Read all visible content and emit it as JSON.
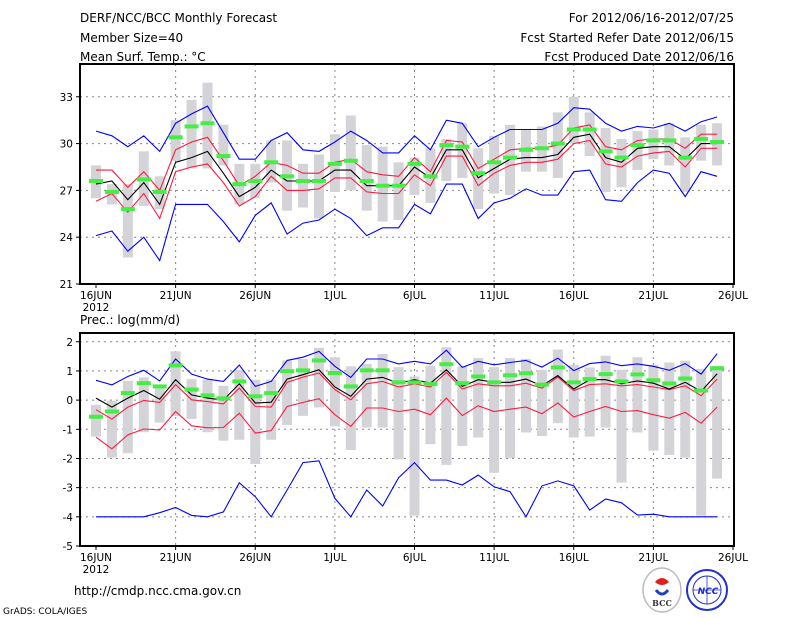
{
  "header": {
    "title": "DERF/NCC/BCC Monthly Forecast",
    "member_size": "Member Size=40",
    "period": "For 2012/06/16-2012/07/25",
    "started": "Fcst Started Refer Date 2012/06/15",
    "produced": "Fcst Produced Date 2012/06/16"
  },
  "footer": {
    "url": "http://cmdp.ncc.cma.gov.cn",
    "credit": "GrADS: COLA/IGES",
    "logo_bcc": "BCC",
    "logo_ncc": "NCC"
  },
  "colors": {
    "max_min": "#0000ff",
    "spread": "#ff1a40",
    "mean": "#000000",
    "median": "#44ee44",
    "range_bar": "#d4d4d8"
  },
  "chart_data": [
    {
      "type": "line",
      "title": "Mean Surf. Temp.: °C",
      "xlabel": "",
      "ylabel": "",
      "x_ticks": [
        "16JUN",
        "21JUN",
        "26JUN",
        "1JUL",
        "6JUL",
        "11JUL",
        "16JUL",
        "21JUL",
        "26JUL"
      ],
      "x_year": "2012",
      "x_start": "2012-06-16",
      "x_step_days": 1,
      "ylim": [
        21,
        35.1
      ],
      "y_ticks": [
        "21",
        "24",
        "27",
        "30",
        "33"
      ],
      "y_tick_values": [
        21,
        24,
        27,
        30,
        33
      ],
      "grid": true,
      "series": [
        {
          "name": "max",
          "color": "#0000ff",
          "values": [
            30.8,
            30.5,
            29.8,
            30.5,
            29.5,
            31.3,
            31.9,
            32.4,
            30.7,
            29.0,
            29.0,
            30.2,
            30.7,
            29.6,
            29.5,
            30.1,
            30.8,
            30.2,
            29.4,
            29.4,
            30.5,
            29.6,
            31.5,
            31.3,
            29.8,
            30.4,
            30.9,
            30.9,
            30.9,
            31.3,
            32.3,
            32.2,
            31.3,
            30.8,
            31.1,
            31.0,
            31.3,
            30.8,
            31.4,
            31.7
          ]
        },
        {
          "name": "upper",
          "color": "#ff1a40",
          "values": [
            28.3,
            28.3,
            27.2,
            28.2,
            27.0,
            29.6,
            30.1,
            30.4,
            28.9,
            27.3,
            27.9,
            28.8,
            28.6,
            28.1,
            28.1,
            28.8,
            29.0,
            28.2,
            28.0,
            27.9,
            29.1,
            28.2,
            30.2,
            30.1,
            28.4,
            29.0,
            29.6,
            29.7,
            29.7,
            29.9,
            31.0,
            31.2,
            29.8,
            29.6,
            30.2,
            30.3,
            30.3,
            29.7,
            30.6,
            30.6
          ]
        },
        {
          "name": "mean",
          "color": "#000000",
          "values": [
            27.4,
            27.6,
            26.4,
            27.5,
            26.1,
            28.8,
            29.1,
            29.5,
            28.1,
            26.6,
            27.2,
            28.3,
            27.6,
            27.6,
            27.6,
            28.3,
            28.3,
            27.3,
            27.3,
            27.3,
            28.5,
            27.8,
            29.6,
            29.6,
            27.8,
            28.4,
            29.0,
            29.1,
            29.1,
            29.3,
            30.4,
            30.6,
            29.1,
            28.8,
            29.7,
            29.8,
            29.8,
            29.0,
            30.0,
            30.0
          ]
        },
        {
          "name": "lower",
          "color": "#ff1a40",
          "values": [
            26.3,
            26.8,
            25.6,
            26.8,
            25.2,
            28.2,
            28.5,
            28.7,
            27.5,
            26.0,
            26.6,
            27.9,
            27.0,
            27.0,
            27.1,
            27.8,
            27.8,
            26.9,
            26.8,
            26.8,
            28.0,
            27.3,
            29.2,
            29.2,
            27.3,
            28.1,
            28.6,
            28.8,
            28.8,
            29.0,
            30.0,
            30.2,
            28.7,
            28.5,
            29.2,
            29.4,
            29.5,
            28.5,
            29.7,
            29.7
          ]
        },
        {
          "name": "min",
          "color": "#0000ff",
          "values": [
            24.1,
            24.4,
            23.1,
            24.0,
            22.5,
            26.1,
            26.1,
            26.1,
            25.0,
            23.7,
            25.4,
            26.2,
            24.2,
            24.9,
            25.1,
            25.8,
            25.2,
            24.1,
            24.6,
            24.6,
            26.1,
            25.5,
            27.4,
            27.4,
            25.2,
            26.2,
            26.5,
            27.1,
            26.7,
            26.7,
            28.2,
            28.3,
            26.4,
            26.3,
            27.5,
            28.3,
            28.1,
            26.6,
            28.2,
            27.9
          ]
        },
        {
          "name": "median",
          "color": "#44ee44",
          "values": [
            27.6,
            26.9,
            25.8,
            27.7,
            26.9,
            30.4,
            31.1,
            31.3,
            29.2,
            27.4,
            27.6,
            28.8,
            27.9,
            27.6,
            27.6,
            28.7,
            28.9,
            27.6,
            27.3,
            27.3,
            28.7,
            27.9,
            29.9,
            29.8,
            28.1,
            28.8,
            29.1,
            29.6,
            29.7,
            30.0,
            30.9,
            30.9,
            29.5,
            29.1,
            29.9,
            30.2,
            30.2,
            29.1,
            30.3,
            30.1
          ]
        }
      ],
      "bars": {
        "name": "range",
        "color": "#d4d4d8",
        "top": [
          28.6,
          27.4,
          27.4,
          29.5,
          27.9,
          31.5,
          32.8,
          33.9,
          31.2,
          28.7,
          28.7,
          30.2,
          30.2,
          28.7,
          29.3,
          30.6,
          31.8,
          29.9,
          29.8,
          28.8,
          29.1,
          29.7,
          30.3,
          31.3,
          29.7,
          30.5,
          31.2,
          30.9,
          31.1,
          32.0,
          33.0,
          32.0,
          31.0,
          30.3,
          30.8,
          30.9,
          31.3,
          30.4,
          31.2,
          31.3
        ],
        "bottom": [
          26.5,
          26.1,
          22.7,
          26.0,
          25.8,
          28.9,
          28.4,
          28.4,
          28.6,
          26.1,
          26.5,
          27.5,
          25.7,
          25.9,
          25.2,
          26.9,
          27.0,
          25.7,
          25.0,
          25.1,
          26.7,
          26.2,
          27.6,
          27.8,
          25.8,
          26.8,
          26.7,
          28.2,
          28.2,
          27.8,
          30.0,
          29.2,
          26.9,
          27.2,
          28.3,
          29.0,
          28.6,
          26.9,
          28.9,
          28.6
        ]
      }
    },
    {
      "type": "line",
      "title": "Prec.: log(mm/d)",
      "xlabel": "",
      "ylabel": "",
      "x_ticks": [
        "16JUN",
        "21JUN",
        "26JUN",
        "1JUL",
        "6JUL",
        "11JUL",
        "16JUL",
        "21JUL",
        "26JUL"
      ],
      "x_year": "2012",
      "x_start": "2012-06-16",
      "x_step_days": 1,
      "ylim": [
        -5,
        2.3
      ],
      "y_ticks": [
        "-5",
        "-4",
        "-3",
        "-2",
        "-1",
        "0",
        "1",
        "2"
      ],
      "y_tick_values": [
        -5,
        -4,
        -3,
        -2,
        -1,
        0,
        1,
        2
      ],
      "grid": true,
      "series": [
        {
          "name": "max",
          "color": "#0000ff",
          "values": [
            0.68,
            0.52,
            0.81,
            1.02,
            0.66,
            1.41,
            0.89,
            0.72,
            0.64,
            1.2,
            0.47,
            0.64,
            1.36,
            1.47,
            1.67,
            1.16,
            0.78,
            1.41,
            1.41,
            1.24,
            1.33,
            1.24,
            1.71,
            1.12,
            1.33,
            1.21,
            1.29,
            1.36,
            1.13,
            1.44,
            1.01,
            1.25,
            1.31,
            1.18,
            1.24,
            1.16,
            1.02,
            1.25,
            0.89,
            1.59
          ]
        },
        {
          "name": "upper",
          "color": "#ff1a40",
          "values": [
            -0.33,
            -0.65,
            -0.24,
            -0.01,
            -0.08,
            0.53,
            0.01,
            -0.05,
            -0.13,
            0.41,
            -0.22,
            -0.24,
            0.61,
            0.79,
            0.93,
            0.36,
            0.01,
            0.56,
            0.64,
            0.45,
            0.56,
            0.45,
            0.95,
            0.38,
            0.56,
            0.49,
            0.49,
            0.58,
            0.41,
            0.79,
            0.33,
            0.53,
            0.56,
            0.49,
            0.53,
            0.45,
            0.36,
            0.49,
            0.15,
            0.72
          ]
        },
        {
          "name": "mean",
          "color": "#000000",
          "values": [
            0.07,
            -0.24,
            0.07,
            0.33,
            0.03,
            0.7,
            0.18,
            0.07,
            0.0,
            0.56,
            -0.1,
            -0.07,
            0.72,
            0.87,
            1.04,
            0.45,
            0.13,
            0.72,
            0.78,
            0.58,
            0.7,
            0.58,
            1.04,
            0.47,
            0.7,
            0.61,
            0.61,
            0.72,
            0.49,
            0.84,
            0.38,
            0.7,
            0.7,
            0.56,
            0.66,
            0.58,
            0.38,
            0.61,
            0.3,
            0.9
          ]
        },
        {
          "name": "lower",
          "color": "#ff1a40",
          "values": [
            -1.27,
            -1.67,
            -1.19,
            -0.99,
            -1.02,
            -0.39,
            -0.88,
            -0.95,
            -0.94,
            -0.45,
            -1.13,
            -1.04,
            -0.22,
            -0.08,
            0.05,
            -0.5,
            -0.9,
            -0.27,
            -0.27,
            -0.39,
            -0.31,
            -0.5,
            0.07,
            -0.53,
            -0.19,
            -0.39,
            -0.31,
            -0.24,
            -0.47,
            -0.1,
            -0.58,
            -0.39,
            -0.22,
            -0.39,
            -0.36,
            -0.5,
            -0.62,
            -0.42,
            -0.79,
            -0.24
          ]
        },
        {
          "name": "min",
          "color": "#0000ff",
          "values": [
            -4.0,
            -4.0,
            -4.0,
            -4.0,
            -3.86,
            -3.68,
            -3.95,
            -4.0,
            -3.83,
            -2.83,
            -3.31,
            -4.0,
            -3.08,
            -2.14,
            -2.08,
            -3.37,
            -4.0,
            -3.08,
            -3.63,
            -2.66,
            -2.14,
            -2.74,
            -2.74,
            -2.91,
            -2.57,
            -2.97,
            -3.14,
            -4.0,
            -2.94,
            -2.77,
            -2.94,
            -3.77,
            -3.39,
            -3.52,
            -3.94,
            -3.91,
            -4.0,
            -4.0,
            -4.0,
            -4.0
          ]
        },
        {
          "name": "median",
          "color": "#44ee44",
          "values": [
            -0.57,
            -0.39,
            0.24,
            0.58,
            0.47,
            1.19,
            0.36,
            0.16,
            0.06,
            0.64,
            0.13,
            0.24,
            0.99,
            1.02,
            1.36,
            0.93,
            0.47,
            1.02,
            1.02,
            0.61,
            0.61,
            0.55,
            1.23,
            0.58,
            0.81,
            0.61,
            0.85,
            0.92,
            0.53,
            1.12,
            0.61,
            0.72,
            0.89,
            0.64,
            0.88,
            0.68,
            0.57,
            0.74,
            0.33,
            1.09
          ]
        }
      ],
      "bars": {
        "name": "range",
        "color": "#d4d4d8",
        "top": [
          -0.16,
          -0.02,
          0.66,
          0.78,
          0.53,
          1.67,
          0.72,
          0.7,
          0.49,
          1.04,
          0.7,
          0.7,
          1.36,
          1.41,
          1.79,
          1.47,
          1.16,
          1.24,
          1.58,
          1.13,
          0.81,
          1.18,
          1.81,
          1.16,
          1.44,
          1.13,
          1.44,
          1.41,
          1.04,
          1.73,
          1.21,
          1.12,
          1.52,
          1.04,
          1.47,
          1.21,
          1.29,
          1.35,
          1.07,
          1.18
        ],
        "bottom": [
          -1.25,
          -1.97,
          -1.82,
          -1.1,
          -0.77,
          -0.54,
          -0.65,
          -1.1,
          -1.39,
          -1.36,
          -2.19,
          -1.36,
          -0.85,
          -0.54,
          -0.25,
          -0.9,
          -1.71,
          -0.94,
          -0.94,
          -2.03,
          -3.96,
          -1.51,
          -2.22,
          -1.57,
          -1.28,
          -2.49,
          -1.99,
          -1.11,
          -1.23,
          -0.79,
          -1.28,
          -1.25,
          -0.94,
          -2.83,
          -1.11,
          -1.73,
          -1.88,
          -1.97,
          -3.96,
          -2.69
        ]
      }
    }
  ]
}
